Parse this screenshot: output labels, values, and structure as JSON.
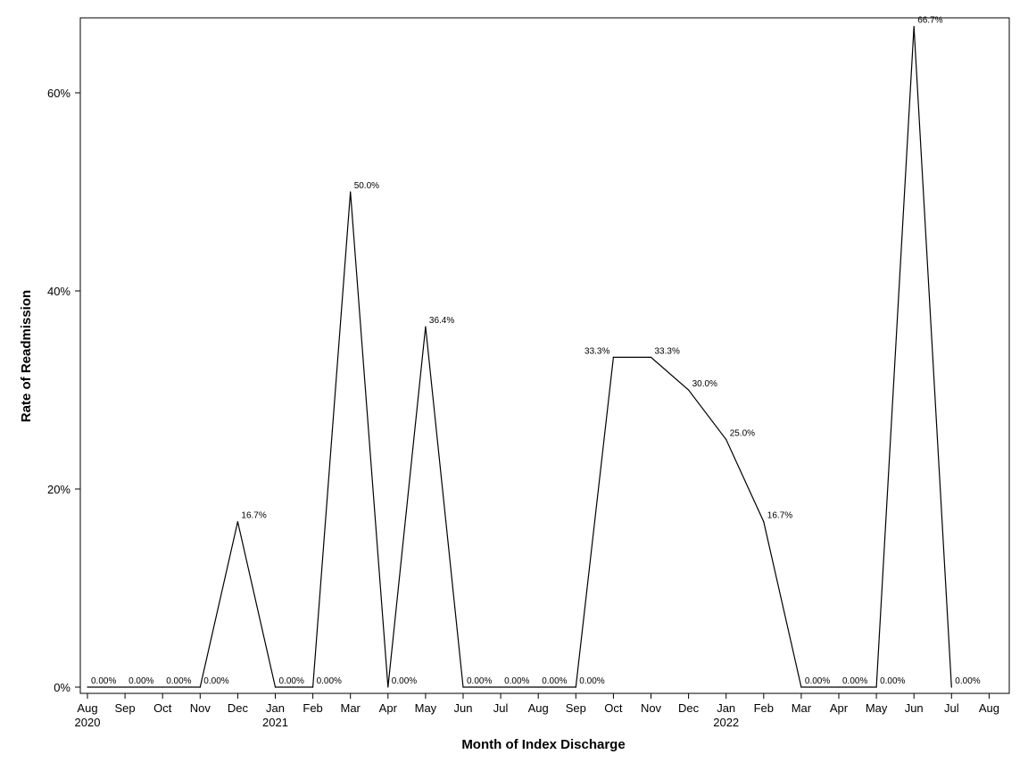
{
  "chart_data": {
    "type": "line",
    "xlabel": "Month of Index Discharge",
    "ylabel": "Rate of Readmission",
    "ylim": [
      0,
      67.7
    ],
    "y_ticks": [
      0,
      20,
      40,
      60
    ],
    "y_tick_labels": [
      "0%",
      "20%",
      "40%",
      "60%"
    ],
    "grid": false,
    "line_color": "#000000",
    "x_categories": [
      "Aug",
      "Sep",
      "Oct",
      "Nov",
      "Dec",
      "Jan",
      "Feb",
      "Mar",
      "Apr",
      "May",
      "Jun",
      "Jul",
      "Aug",
      "Sep",
      "Oct",
      "Nov",
      "Dec",
      "Jan",
      "Feb",
      "Mar",
      "Apr",
      "May",
      "Jun",
      "Jul",
      "Aug"
    ],
    "year_labels": [
      {
        "category_index": 0,
        "label": "2020"
      },
      {
        "category_index": 5,
        "label": "2021"
      },
      {
        "category_index": 17,
        "label": "2022"
      }
    ],
    "points": [
      {
        "month": "Aug 2020",
        "value": 0,
        "label": "0.00%"
      },
      {
        "month": "Sep 2020",
        "value": 0,
        "label": "0.00%"
      },
      {
        "month": "Oct 2020",
        "value": 0,
        "label": "0.00%"
      },
      {
        "month": "Nov 2020",
        "value": 0,
        "label": "0.00%"
      },
      {
        "month": "Dec 2020",
        "value": 16.7,
        "label": "16.7%"
      },
      {
        "month": "Jan 2021",
        "value": 0,
        "label": "0.00%"
      },
      {
        "month": "Feb 2021",
        "value": 0,
        "label": "0.00%"
      },
      {
        "month": "Mar 2021",
        "value": 50.0,
        "label": "50.0%"
      },
      {
        "month": "Apr 2021",
        "value": 0,
        "label": "0.00%"
      },
      {
        "month": "May 2021",
        "value": 36.4,
        "label": "36.4%"
      },
      {
        "month": "Jun 2021",
        "value": 0,
        "label": "0.00%"
      },
      {
        "month": "Jul 2021",
        "value": 0,
        "label": "0.00%"
      },
      {
        "month": "Aug 2021",
        "value": 0,
        "label": "0.00%"
      },
      {
        "month": "Sep 2021",
        "value": 0,
        "label": "0.00%"
      },
      {
        "month": "Oct 2021",
        "value": 33.3,
        "label": "33.3%"
      },
      {
        "month": "Nov 2021",
        "value": 33.3,
        "label": "33.3%"
      },
      {
        "month": "Dec 2021",
        "value": 30.0,
        "label": "30.0%"
      },
      {
        "month": "Jan 2022",
        "value": 25.0,
        "label": "25.0%"
      },
      {
        "month": "Feb 2022",
        "value": 16.7,
        "label": "16.7%"
      },
      {
        "month": "Mar 2022",
        "value": 0,
        "label": "0.00%"
      },
      {
        "month": "Apr 2022",
        "value": 0,
        "label": "0.00%"
      },
      {
        "month": "May 2022",
        "value": 0,
        "label": "0.00%"
      },
      {
        "month": "Jun 2022",
        "value": 66.7,
        "label": "66.7%"
      },
      {
        "month": "Jul 2022",
        "value": 0,
        "label": "0.00%"
      }
    ]
  }
}
